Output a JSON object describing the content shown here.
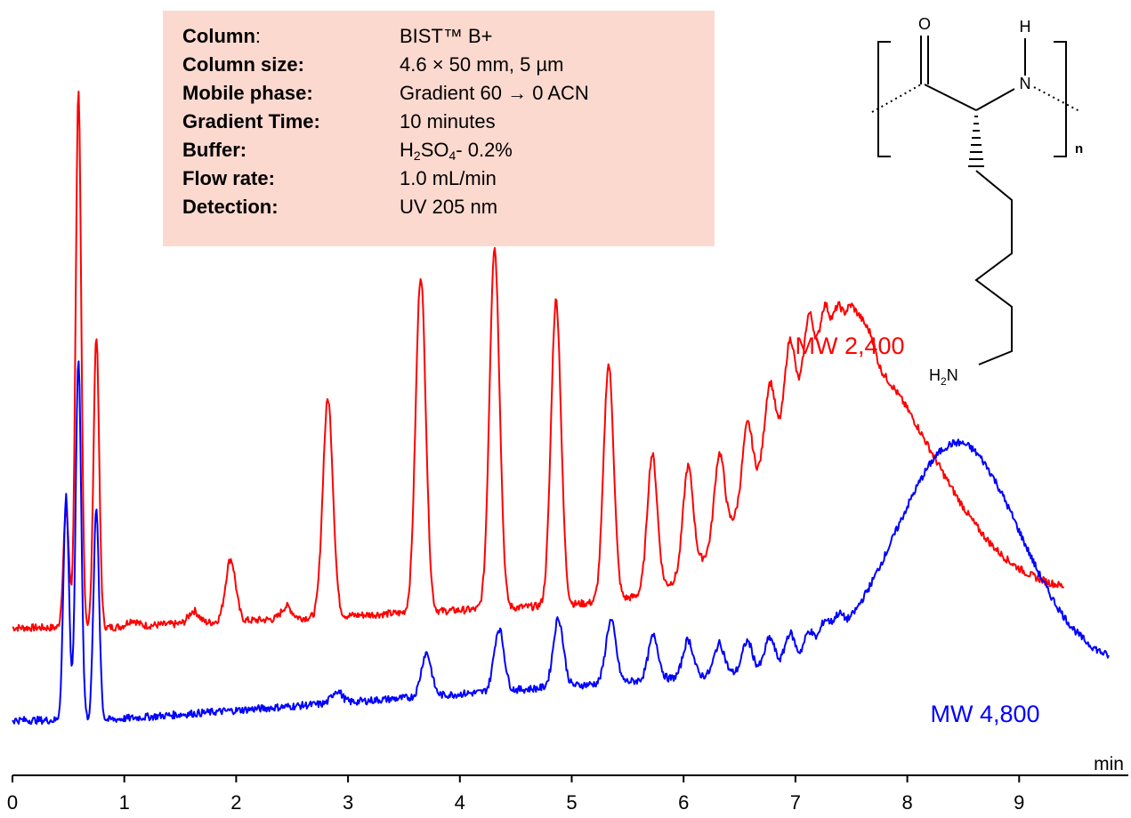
{
  "conditions": {
    "rows": [
      {
        "key": "Column",
        "colon": ":",
        "value": "BIST™ B+"
      },
      {
        "key": "Column size:",
        "colon": "",
        "value": "4.6 × 50 mm, 5 µm"
      },
      {
        "key": "Mobile phase:",
        "colon": "",
        "value": "Gradient 60 → 0 ACN"
      },
      {
        "key": "Gradient Time:",
        "colon": "",
        "value": "10 minutes"
      },
      {
        "key": "Buffer:",
        "colon": "",
        "value_parts": [
          "H",
          "2",
          "SO",
          "4",
          "- 0.2%"
        ]
      },
      {
        "key": "Flow rate:",
        "colon": "",
        "value": "1.0 mL/min"
      },
      {
        "key": "Detection:",
        "colon": "",
        "value": "UV 205 nm"
      }
    ]
  },
  "structure": {
    "atoms": {
      "o": "O",
      "h": "H",
      "n": "N",
      "nh2_h": "H",
      "nh2_sub": "2",
      "nh2_n": "N"
    },
    "repeat": "n"
  },
  "chart_data": {
    "type": "line",
    "xlabel": "min",
    "xlim": [
      0,
      9.8
    ],
    "x_ticks": [
      0,
      1,
      2,
      3,
      4,
      5,
      6,
      7,
      8,
      9
    ],
    "y_ticks_shown": false,
    "series": [
      {
        "name": "MW 2,400",
        "color": "#ff0000",
        "x_range": [
          0,
          9.4
        ],
        "baseline_start": 0.06,
        "background_bump": {
          "center": 7.5,
          "width": 0.7,
          "height": 0.38
        },
        "peaks": [
          {
            "x": 0.48,
            "height": 0.19
          },
          {
            "x": 0.59,
            "height": 0.86
          },
          {
            "x": 0.75,
            "height": 0.47
          },
          {
            "x": 1.07,
            "height": 0.01
          },
          {
            "x": 1.62,
            "height": 0.02
          },
          {
            "x": 1.95,
            "height": 0.1
          },
          {
            "x": 2.45,
            "height": 0.02
          },
          {
            "x": 2.82,
            "height": 0.35
          },
          {
            "x": 3.65,
            "height": 0.54
          },
          {
            "x": 4.31,
            "height": 0.58
          },
          {
            "x": 4.86,
            "height": 0.49
          },
          {
            "x": 5.33,
            "height": 0.38
          },
          {
            "x": 5.72,
            "height": 0.22
          },
          {
            "x": 6.04,
            "height": 0.17
          },
          {
            "x": 6.32,
            "height": 0.14
          },
          {
            "x": 6.57,
            "height": 0.12
          },
          {
            "x": 6.77,
            "height": 0.12
          },
          {
            "x": 6.95,
            "height": 0.13
          },
          {
            "x": 7.12,
            "height": 0.12
          },
          {
            "x": 7.26,
            "height": 0.1
          },
          {
            "x": 7.38,
            "height": 0.08
          },
          {
            "x": 7.49,
            "height": 0.07
          },
          {
            "x": 7.58,
            "height": 0.05
          },
          {
            "x": 7.67,
            "height": 0.04
          }
        ]
      },
      {
        "name": "MW 4,800",
        "color": "#0000ff",
        "x_range": [
          0,
          9.8
        ],
        "baseline_start": 0.07,
        "background_bump": {
          "center": 8.45,
          "width": 0.55,
          "height": 0.36
        },
        "peaks": [
          {
            "x": 0.48,
            "height": 0.36
          },
          {
            "x": 0.59,
            "height": 0.58
          },
          {
            "x": 0.75,
            "height": 0.34
          },
          {
            "x": 2.9,
            "height": 0.02
          },
          {
            "x": 3.7,
            "height": 0.07
          },
          {
            "x": 4.35,
            "height": 0.1
          },
          {
            "x": 4.88,
            "height": 0.11
          },
          {
            "x": 5.35,
            "height": 0.1
          },
          {
            "x": 5.73,
            "height": 0.07
          },
          {
            "x": 6.04,
            "height": 0.06
          },
          {
            "x": 6.32,
            "height": 0.05
          },
          {
            "x": 6.57,
            "height": 0.05
          },
          {
            "x": 6.77,
            "height": 0.05
          },
          {
            "x": 6.95,
            "height": 0.05
          },
          {
            "x": 7.12,
            "height": 0.04
          },
          {
            "x": 7.26,
            "height": 0.04
          },
          {
            "x": 7.38,
            "height": 0.03
          }
        ]
      }
    ]
  }
}
